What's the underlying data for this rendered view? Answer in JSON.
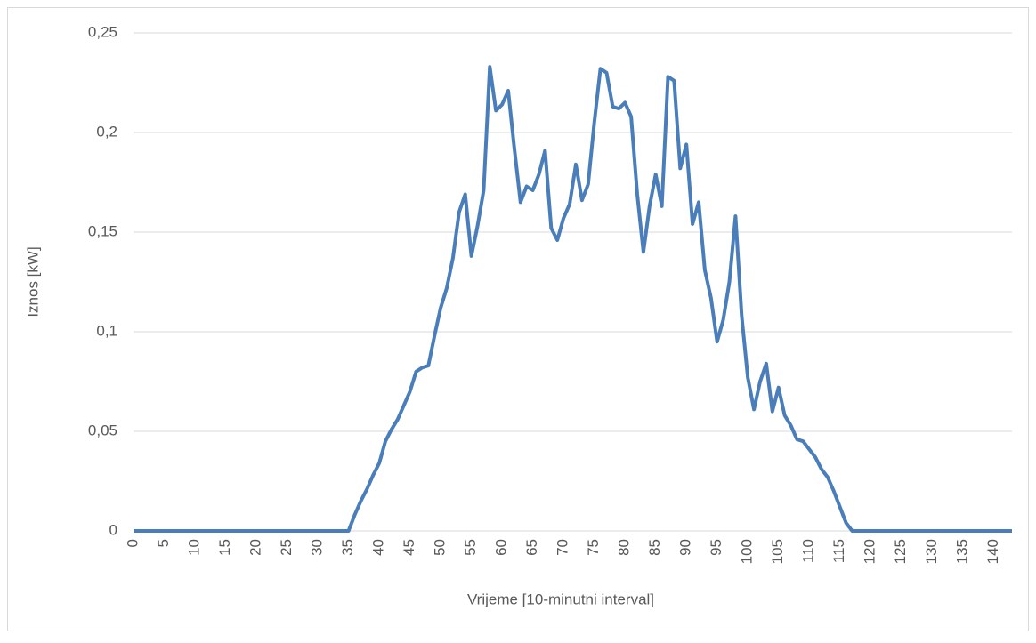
{
  "chart_data": {
    "type": "line",
    "x_label": "Vrijeme [10-minutni interval]",
    "y_label": "Iznos [kW]",
    "x": [
      0,
      1,
      2,
      3,
      4,
      5,
      6,
      7,
      8,
      9,
      10,
      11,
      12,
      13,
      14,
      15,
      16,
      17,
      18,
      19,
      20,
      21,
      22,
      23,
      24,
      25,
      26,
      27,
      28,
      29,
      30,
      31,
      32,
      33,
      34,
      35,
      36,
      37,
      38,
      39,
      40,
      41,
      42,
      43,
      44,
      45,
      46,
      47,
      48,
      49,
      50,
      51,
      52,
      53,
      54,
      55,
      56,
      57,
      58,
      59,
      60,
      61,
      62,
      63,
      64,
      65,
      66,
      67,
      68,
      69,
      70,
      71,
      72,
      73,
      74,
      75,
      76,
      77,
      78,
      79,
      80,
      81,
      82,
      83,
      84,
      85,
      86,
      87,
      88,
      89,
      90,
      91,
      92,
      93,
      94,
      95,
      96,
      97,
      98,
      99,
      100,
      101,
      102,
      103,
      104,
      105,
      106,
      107,
      108,
      109,
      110,
      111,
      112,
      113,
      114,
      115,
      116,
      117,
      118,
      119,
      120,
      121,
      122,
      123,
      124,
      125,
      126,
      127,
      128,
      129,
      130,
      131,
      132,
      133,
      134,
      135,
      136,
      137,
      138,
      139,
      140,
      141,
      142,
      143
    ],
    "series": [
      {
        "color": "#4a7ebb",
        "values": [
          0,
          0,
          0,
          0,
          0,
          0,
          0,
          0,
          0,
          0,
          0,
          0,
          0,
          0,
          0,
          0,
          0,
          0,
          0,
          0,
          0,
          0,
          0,
          0,
          0,
          0,
          0,
          0,
          0,
          0,
          0,
          0,
          0,
          0,
          0,
          0,
          0.008,
          0.015,
          0.021,
          0.028,
          0.034,
          0.045,
          0.051,
          0.056,
          0.063,
          0.07,
          0.08,
          0.082,
          0.083,
          0.098,
          0.112,
          0.122,
          0.137,
          0.16,
          0.169,
          0.138,
          0.153,
          0.171,
          0.233,
          0.211,
          0.214,
          0.221,
          0.192,
          0.165,
          0.173,
          0.171,
          0.179,
          0.191,
          0.152,
          0.146,
          0.157,
          0.164,
          0.184,
          0.166,
          0.174,
          0.205,
          0.232,
          0.23,
          0.213,
          0.212,
          0.215,
          0.208,
          0.169,
          0.14,
          0.163,
          0.179,
          0.163,
          0.228,
          0.226,
          0.182,
          0.194,
          0.154,
          0.165,
          0.131,
          0.117,
          0.095,
          0.106,
          0.125,
          0.158,
          0.108,
          0.077,
          0.061,
          0.075,
          0.084,
          0.06,
          0.072,
          0.058,
          0.053,
          0.046,
          0.045,
          0.041,
          0.037,
          0.031,
          0.027,
          0.02,
          0.012,
          0.004,
          0,
          0,
          0,
          0,
          0,
          0,
          0,
          0,
          0,
          0,
          0,
          0,
          0,
          0,
          0,
          0,
          0,
          0,
          0,
          0,
          0,
          0,
          0,
          0,
          0,
          0,
          0
        ]
      }
    ],
    "xlim": [
      0,
      143
    ],
    "xticks": [
      0,
      5,
      10,
      15,
      20,
      25,
      30,
      35,
      40,
      45,
      50,
      55,
      60,
      65,
      70,
      75,
      80,
      85,
      90,
      95,
      100,
      105,
      110,
      115,
      120,
      125,
      130,
      135,
      140
    ],
    "ylim": [
      0,
      0.25
    ],
    "yticks": [
      0,
      {
        "value": 0.05,
        "label": "0,05"
      },
      {
        "value": 0.1,
        "label": "0,1"
      },
      {
        "value": 0.15,
        "label": "0,15"
      },
      {
        "value": 0.2,
        "label": "0,2"
      },
      {
        "value": 0.25,
        "label": "0,25"
      }
    ],
    "grid": true
  }
}
